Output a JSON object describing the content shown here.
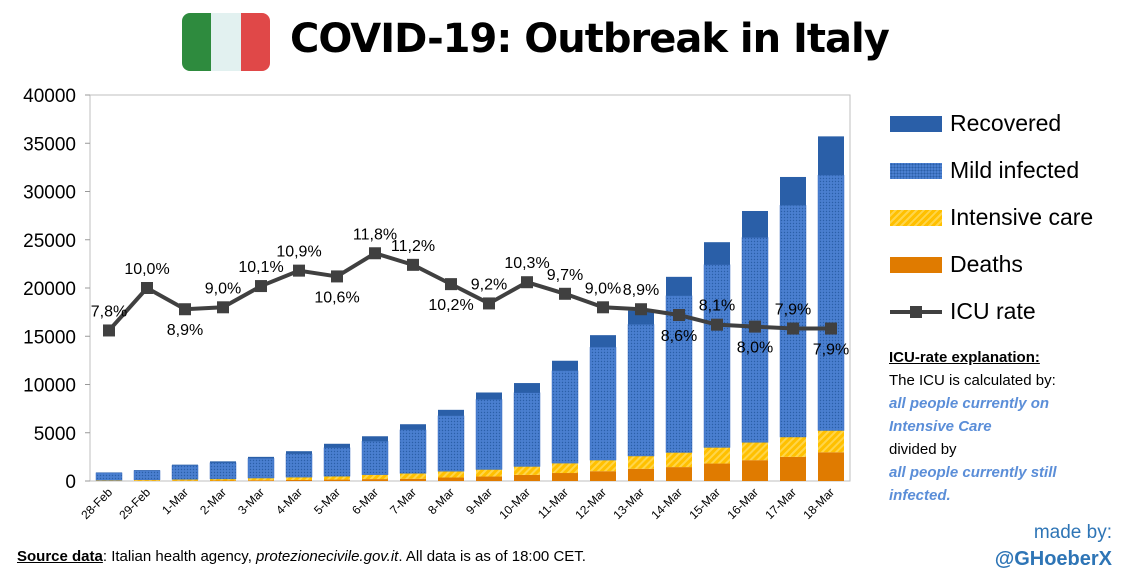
{
  "header": {
    "title": "COVID-19: Outbreak in Italy",
    "flag_icon": "italy-flag-icon"
  },
  "chart_data": {
    "type": "bar",
    "stacked": true,
    "title": "COVID-19: Outbreak in Italy",
    "ylim": [
      0,
      40000
    ],
    "yticks": [
      "0",
      "5000",
      "10000",
      "15000",
      "20000",
      "25000",
      "30000",
      "35000",
      "40000"
    ],
    "categories": [
      "28-Feb",
      "29-Feb",
      "1-Mar",
      "2-Mar",
      "3-Mar",
      "4-Mar",
      "5-Mar",
      "6-Mar",
      "7-Mar",
      "8-Mar",
      "9-Mar",
      "10-Mar",
      "11-Mar",
      "12-Mar",
      "13-Mar",
      "14-Mar",
      "15-Mar",
      "16-Mar",
      "17-Mar",
      "18-Mar"
    ],
    "series": [
      {
        "name": "Deaths",
        "color": "#e07b00",
        "values": [
          21,
          29,
          34,
          52,
          79,
          107,
          148,
          197,
          233,
          366,
          463,
          631,
          827,
          1016,
          1266,
          1441,
          1809,
          2158,
          2503,
          2978
        ]
      },
      {
        "name": "Intensive care",
        "color": "#ffc000",
        "values": [
          64,
          105,
          140,
          166,
          229,
          295,
          351,
          462,
          567,
          650,
          733,
          877,
          1028,
          1153,
          1328,
          1518,
          1672,
          1851,
          2060,
          2257
        ]
      },
      {
        "name": "Mild infected",
        "color": "#4a7fd0",
        "values": [
          757,
          944,
          1437,
          1669,
          2034,
          2411,
          2945,
          3454,
          4494,
          5737,
          7252,
          7637,
          9562,
          11686,
          13627,
          16232,
          18931,
          21222,
          24002,
          26453
        ]
      },
      {
        "name": "Recovered",
        "color": "#2a5fa8",
        "values": [
          46,
          50,
          83,
          149,
          160,
          276,
          414,
          523,
          589,
          622,
          724,
          1004,
          1045,
          1258,
          1439,
          1966,
          2335,
          2749,
          2941,
          4025
        ]
      }
    ],
    "line": {
      "name": "ICU rate",
      "color": "#404040",
      "unit": "%",
      "scale_note": "10% = 20000",
      "values": [
        7.8,
        10.0,
        8.9,
        9.0,
        10.1,
        10.9,
        10.6,
        11.8,
        11.2,
        10.2,
        9.2,
        10.3,
        9.7,
        9.0,
        8.9,
        8.6,
        8.1,
        8.0,
        7.9,
        7.9
      ],
      "labels": [
        "7,8%",
        "10,0%",
        "8,9%",
        "9,0%",
        "10,1%",
        "10,9%",
        "10,6%",
        "11,8%",
        "11,2%",
        "10,2%",
        "9,2%",
        "10,3%",
        "9,7%",
        "9,0%",
        "8,9%",
        "8,6%",
        "8,1%",
        "8,0%",
        "7,9%",
        "7,9%"
      ]
    },
    "legend": [
      "Recovered",
      "Mild infected",
      "Intensive care",
      "Deaths",
      "ICU rate"
    ],
    "legend_position": "right",
    "grid": false
  },
  "explanation": {
    "heading": "ICU-rate explanation:",
    "line1": "The ICU is calculated by:",
    "part1": "all people currently on Intensive Care",
    "line2": "divided by",
    "part2": "all people currently still infected."
  },
  "credit": {
    "label": "made by:",
    "handle": "@GHoeberX"
  },
  "footer": {
    "source_label": "Source data",
    "text1": ": Italian health agency, ",
    "site": "protezionecivile.gov.it",
    "text2": ". All data is as of 18:00 CET."
  }
}
